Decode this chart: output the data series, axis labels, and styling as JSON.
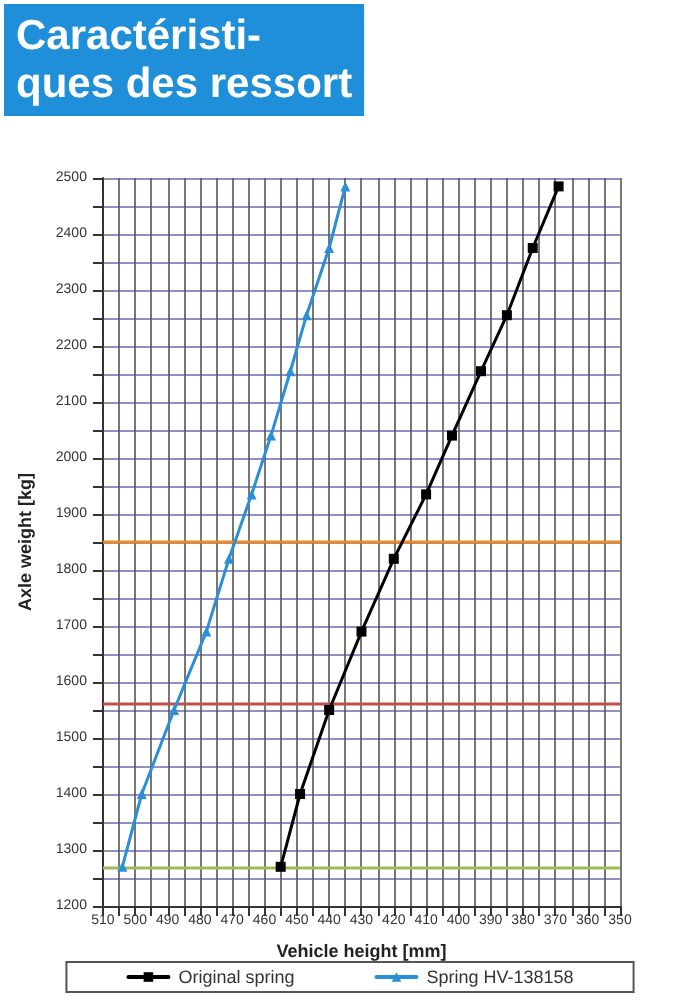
{
  "chart_data": {
    "type": "line",
    "title": "Caractéristi-\nques des ressort",
    "xlabel": "Vehicle height [mm]",
    "ylabel": "Axle weight [kg]",
    "xlim": [
      510,
      350
    ],
    "xticks": [
      510,
      {
        "value": 505,
        "label": null
      },
      500,
      {
        "value": 495,
        "label": null
      },
      490,
      {
        "value": 485,
        "label": null
      },
      480,
      {
        "value": 475,
        "label": null
      },
      470,
      {
        "value": 465,
        "label": null
      },
      460,
      {
        "value": 455,
        "label": null
      },
      450,
      {
        "value": 445,
        "label": null
      },
      440,
      {
        "value": 435,
        "label": null
      },
      430,
      {
        "value": 425,
        "label": null
      },
      420,
      {
        "value": 415,
        "label": null
      },
      410,
      {
        "value": 405,
        "label": null
      },
      400,
      {
        "value": 395,
        "label": null
      },
      390,
      {
        "value": 385,
        "label": null
      },
      380,
      {
        "value": 375,
        "label": null
      },
      370,
      {
        "value": 365,
        "label": null
      },
      360,
      {
        "value": 355,
        "label": null
      },
      350
    ],
    "ylim": [
      1200,
      2500
    ],
    "yticks": [
      1200,
      {
        "value": 1250,
        "label": null
      },
      1300,
      {
        "value": 1350,
        "label": null
      },
      1400,
      {
        "value": 1450,
        "label": null
      },
      1500,
      {
        "value": 1550,
        "label": null
      },
      1600,
      {
        "value": 1650,
        "label": null
      },
      1700,
      {
        "value": 1750,
        "label": null
      },
      1800,
      {
        "value": 1850,
        "label": null
      },
      1900,
      {
        "value": 1950,
        "label": null
      },
      2000,
      {
        "value": 2050,
        "label": null
      },
      2100,
      {
        "value": 2150,
        "label": null
      },
      2200,
      {
        "value": 2250,
        "label": null
      },
      2300,
      {
        "value": 2350,
        "label": null
      },
      2400,
      {
        "value": 2450,
        "label": null
      },
      2500
    ],
    "grid": true,
    "legend": "bottom",
    "line_style": "solid",
    "series": [
      {
        "name": "Original spring",
        "color": "#000000",
        "marker": "square",
        "x": [
          455,
          449,
          440,
          430,
          420,
          410,
          402,
          393,
          385,
          377,
          369
        ],
        "values": [
          1270,
          1400,
          1550,
          1690,
          1820,
          1935,
          2040,
          2155,
          2255,
          2375,
          2485
        ]
      },
      {
        "name": "Spring HV-138158",
        "color": "#2b8fd6",
        "marker": "triangle",
        "x": [
          504,
          498,
          488,
          478,
          471,
          464,
          458,
          452,
          447,
          440,
          435
        ],
        "values": [
          1270,
          1400,
          1550,
          1690,
          1820,
          1935,
          2040,
          2155,
          2255,
          2375,
          2485
        ]
      }
    ],
    "ref_lines": [
      {
        "axis": "y",
        "value": 1850,
        "color": "#f08a24"
      },
      {
        "axis": "y",
        "value": 1560,
        "color": "#c0504d"
      },
      {
        "axis": "y",
        "value": 1270,
        "color": "#9bbb59"
      }
    ]
  }
}
